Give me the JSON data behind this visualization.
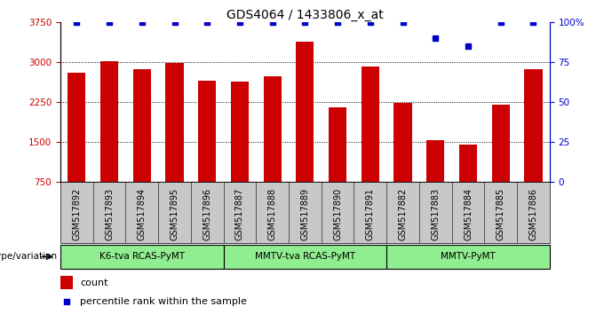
{
  "title": "GDS4064 / 1433806_x_at",
  "samples": [
    "GSM517892",
    "GSM517893",
    "GSM517894",
    "GSM517895",
    "GSM517896",
    "GSM517887",
    "GSM517888",
    "GSM517889",
    "GSM517890",
    "GSM517891",
    "GSM517882",
    "GSM517883",
    "GSM517884",
    "GSM517885",
    "GSM517886"
  ],
  "counts": [
    2800,
    3020,
    2870,
    2990,
    2650,
    2640,
    2740,
    3380,
    2150,
    2920,
    2230,
    1530,
    1460,
    2200,
    2860
  ],
  "percentile_ranks": [
    100,
    100,
    100,
    100,
    100,
    100,
    100,
    100,
    100,
    100,
    100,
    90,
    85,
    100,
    100
  ],
  "bar_color": "#CC0000",
  "dot_color": "#0000CC",
  "ylim_left": [
    750,
    3750
  ],
  "ylim_right": [
    0,
    100
  ],
  "yticks_left": [
    750,
    1500,
    2250,
    3000,
    3750
  ],
  "yticks_right": [
    0,
    25,
    50,
    75,
    100
  ],
  "gridlines": [
    1500,
    2250,
    3000
  ],
  "groups": [
    {
      "label": "K6-tva RCAS-PyMT",
      "start": 0,
      "end": 5
    },
    {
      "label": "MMTV-tva RCAS-PyMT",
      "start": 5,
      "end": 10
    },
    {
      "label": "MMTV-PyMT",
      "start": 10,
      "end": 15
    }
  ],
  "group_bar_color": "#C8C8C8",
  "group_box_color": "#90EE90",
  "xlabel_genotype": "genotype/variation",
  "legend_count_color": "#CC0000",
  "legend_dot_color": "#0000CC",
  "title_fontsize": 10,
  "tick_fontsize": 7.5,
  "label_fontsize": 7
}
